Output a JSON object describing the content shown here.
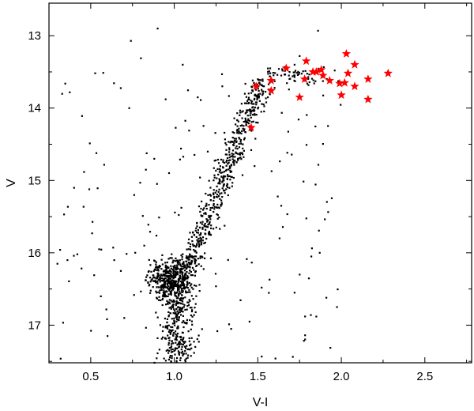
{
  "chart_data": {
    "type": "scatter",
    "title": "",
    "xlabel": "V-I",
    "ylabel": "V",
    "xlim": [
      0.25,
      2.78
    ],
    "ylim": [
      17.52,
      12.55
    ],
    "y_inverted": true,
    "grid": false,
    "x_ticks": [
      0.5,
      1.0,
      1.5,
      2.0,
      2.5
    ],
    "x_tick_labels": [
      "0.5",
      "1.0",
      "1.5",
      "2.0",
      "2.5"
    ],
    "y_ticks": [
      13,
      14,
      15,
      16,
      17
    ],
    "y_tick_labels": [
      "13",
      "14",
      "15",
      "16",
      "17"
    ],
    "colors": {
      "stars": "#000000",
      "highlighted": "#ff0000",
      "axes": "#000000"
    },
    "series": [
      {
        "marker": "square-dot",
        "color": "#000000",
        "points": [
          [
            0.9,
            12.9
          ],
          [
            0.74,
            13.07
          ],
          [
            0.8,
            13.31
          ],
          [
            1.05,
            13.4
          ],
          [
            1.75,
            13.28
          ],
          [
            1.86,
            12.93
          ],
          [
            1.57,
            13.65
          ],
          [
            1.6,
            13.72
          ],
          [
            1.64,
            13.55
          ],
          [
            1.69,
            13.5
          ],
          [
            1.55,
            13.92
          ],
          [
            1.52,
            14.05
          ],
          [
            1.48,
            14.08
          ],
          [
            1.45,
            14.25
          ],
          [
            1.41,
            14.5
          ],
          [
            1.38,
            14.7
          ],
          [
            1.34,
            14.95
          ],
          [
            1.31,
            15.12
          ],
          [
            1.27,
            15.38
          ],
          [
            1.22,
            15.62
          ],
          [
            1.16,
            15.85
          ],
          [
            1.1,
            16.05
          ],
          [
            0.96,
            16.32
          ],
          [
            0.92,
            16.3
          ],
          [
            0.88,
            16.34
          ],
          [
            0.98,
            16.4
          ],
          [
            1.06,
            16.38
          ],
          [
            1.12,
            16.45
          ],
          [
            1.02,
            16.7
          ],
          [
            1.0,
            16.95
          ],
          [
            1.04,
            17.2
          ],
          [
            1.08,
            17.45
          ],
          [
            0.3,
            16.15
          ],
          [
            0.4,
            15.1
          ],
          [
            0.36,
            16.1
          ],
          [
            0.55,
            15.95
          ],
          [
            0.56,
            16.6
          ],
          [
            0.6,
            17.15
          ],
          [
            0.64,
            16.1
          ],
          [
            0.68,
            16.25
          ],
          [
            0.7,
            16.9
          ],
          [
            0.76,
            15.2
          ],
          [
            0.83,
            14.85
          ],
          [
            0.88,
            14.7
          ],
          [
            0.82,
            15.9
          ],
          [
            0.73,
            14.0
          ],
          [
            1.2,
            14.6
          ],
          [
            1.14,
            13.85
          ],
          [
            1.64,
            15.35
          ],
          [
            1.63,
            15.8
          ],
          [
            1.72,
            16.55
          ],
          [
            1.82,
            16.05
          ],
          [
            1.87,
            16.0
          ],
          [
            1.85,
            16.88
          ],
          [
            1.91,
            16.62
          ],
          [
            1.57,
            16.37
          ],
          [
            1.34,
            17.05
          ],
          [
            1.45,
            16.95
          ],
          [
            1.75,
            16.3
          ],
          [
            1.5,
            14.2
          ],
          [
            1.36,
            14.42
          ],
          [
            1.48,
            14.8
          ],
          [
            1.3,
            14.34
          ],
          [
            1.46,
            14.58
          ],
          [
            1.56,
            13.85
          ],
          [
            1.5,
            13.6
          ],
          [
            1.66,
            13.43
          ],
          [
            1.72,
            13.4
          ],
          [
            1.96,
            13.48
          ],
          [
            1.78,
            13.62
          ]
        ]
      },
      {
        "name": "",
        "marker": "star",
        "color": "#ff0000",
        "points": [
          [
            2.03,
            13.25
          ],
          [
            1.79,
            13.35
          ],
          [
            1.67,
            13.45
          ],
          [
            1.83,
            13.5
          ],
          [
            1.85,
            13.5
          ],
          [
            1.88,
            13.47
          ],
          [
            2.08,
            13.4
          ],
          [
            2.28,
            13.52
          ],
          [
            2.04,
            13.52
          ],
          [
            1.89,
            13.55
          ],
          [
            1.78,
            13.6
          ],
          [
            1.93,
            13.62
          ],
          [
            1.58,
            13.62
          ],
          [
            2.16,
            13.6
          ],
          [
            2.02,
            13.65
          ],
          [
            1.99,
            13.66
          ],
          [
            2.08,
            13.7
          ],
          [
            1.49,
            13.7
          ],
          [
            1.58,
            13.76
          ],
          [
            2.0,
            13.82
          ],
          [
            1.75,
            13.85
          ],
          [
            2.16,
            13.88
          ],
          [
            1.46,
            14.27
          ]
        ]
      }
    ]
  }
}
